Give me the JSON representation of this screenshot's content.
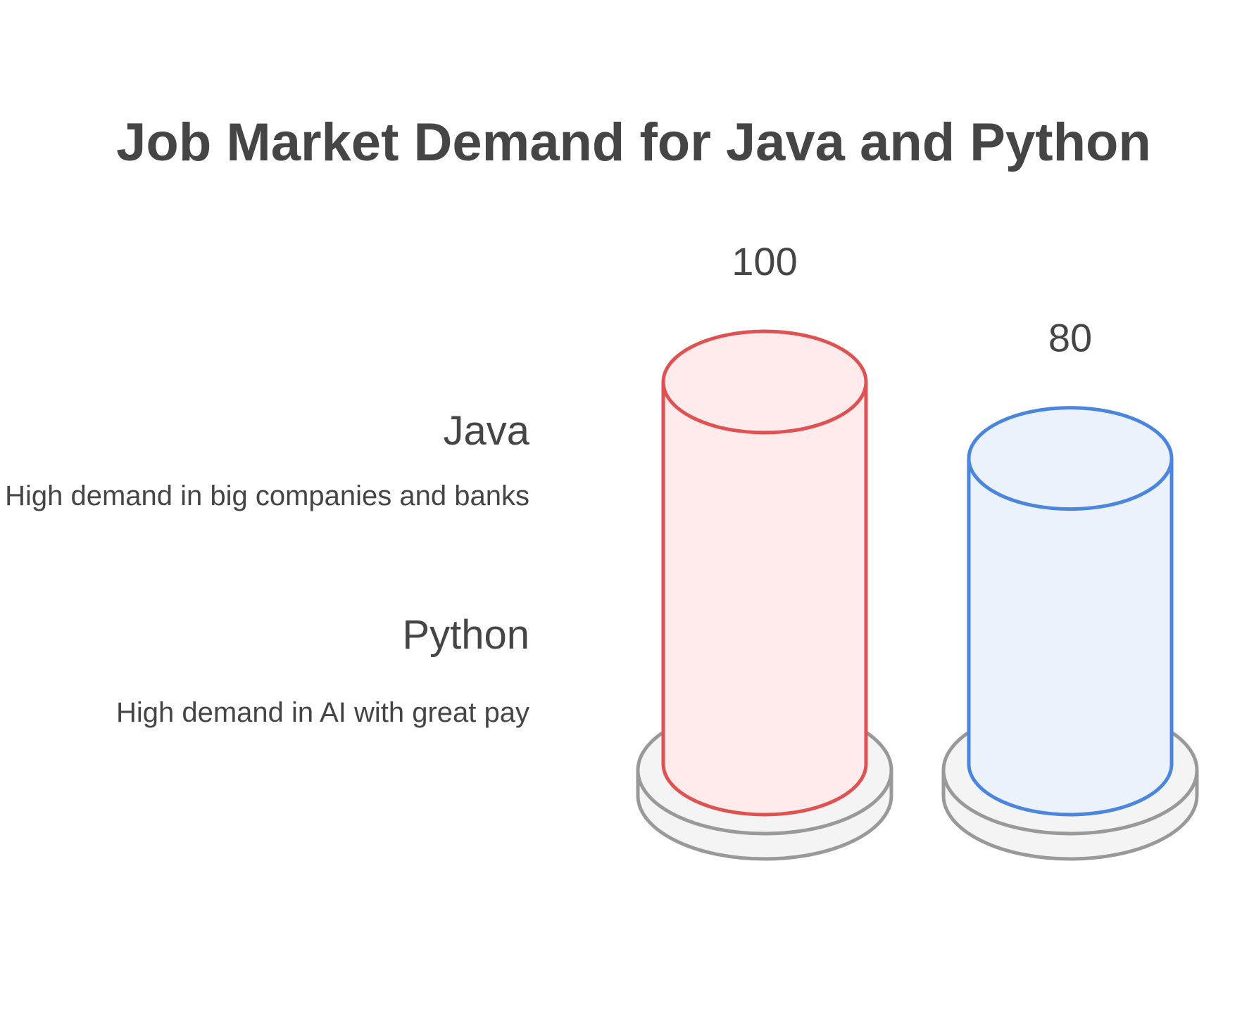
{
  "chart_data": {
    "type": "bar",
    "title": "Job Market Demand for Java and Python",
    "categories": [
      "Java",
      "Python"
    ],
    "values": [
      100,
      80
    ],
    "descriptions": [
      "High demand in big companies and banks",
      "High demand in AI with great pay"
    ],
    "ylim": [
      0,
      100
    ],
    "grid": false,
    "legend": "left",
    "colors": {
      "java_stroke": "#E05252",
      "java_fill": "#FFEBEB",
      "python_stroke": "#4A86E0",
      "python_fill": "#EBF2FC",
      "base_stroke": "#999999",
      "base_fill": "#F4F4F4",
      "text": "#454545"
    }
  }
}
